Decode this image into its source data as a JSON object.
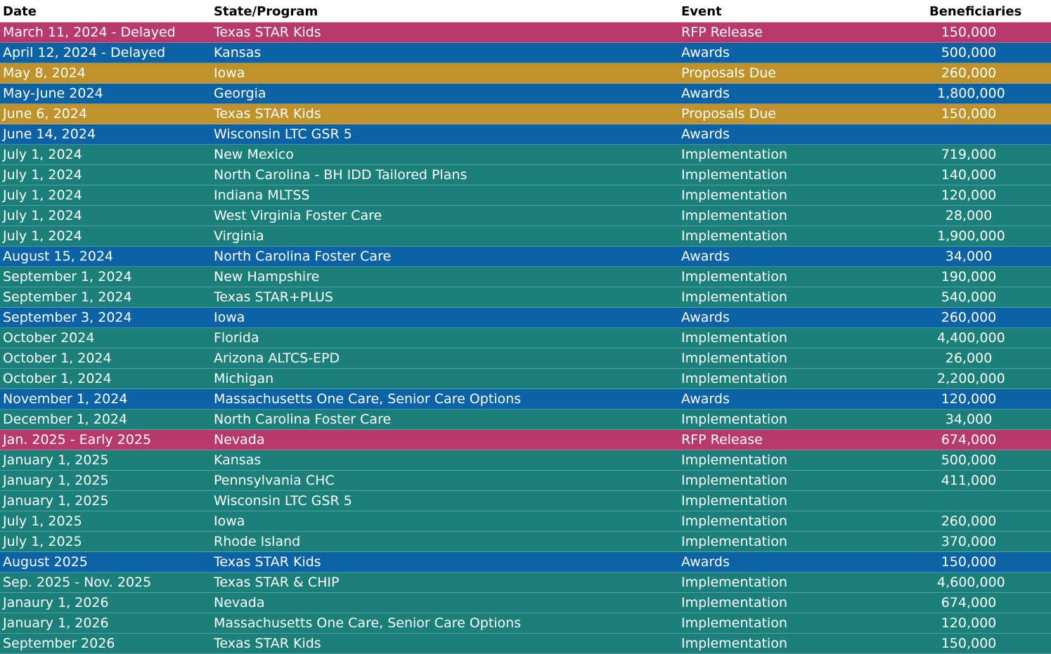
{
  "header": {
    "date": "Date",
    "program": "State/Program",
    "event": "Event",
    "beneficiaries": "Beneficiaries"
  },
  "colors": {
    "rfp_release": "#b8396b",
    "awards": "#0b62a4",
    "proposals_due": "#c0922b",
    "implementation": "#1b7f7a"
  },
  "rows": [
    {
      "date": "March 11, 2024 - Delayed",
      "program": "Texas STAR Kids",
      "event": "RFP Release",
      "beneficiaries": "150,000",
      "type": "rfp_release"
    },
    {
      "date": "April 12, 2024 - Delayed",
      "program": "Kansas",
      "event": "Awards",
      "beneficiaries": "500,000",
      "type": "awards"
    },
    {
      "date": "May 8, 2024",
      "program": "Iowa",
      "event": "Proposals Due",
      "beneficiaries": "260,000",
      "type": "proposals_due"
    },
    {
      "date": "May-June 2024",
      "program": "Georgia",
      "event": "Awards",
      "beneficiaries": "1,800,000",
      "type": "awards"
    },
    {
      "date": "June 6, 2024",
      "program": "Texas STAR Kids",
      "event": "Proposals Due",
      "beneficiaries": "150,000",
      "type": "proposals_due"
    },
    {
      "date": "June 14, 2024",
      "program": "Wisconsin LTC GSR 5",
      "event": "Awards",
      "beneficiaries": "",
      "type": "awards"
    },
    {
      "date": "July 1, 2024",
      "program": "New Mexico",
      "event": "Implementation",
      "beneficiaries": "719,000",
      "type": "implementation"
    },
    {
      "date": "July 1, 2024",
      "program": "North Carolina -  BH IDD Tailored Plans",
      "event": "Implementation",
      "beneficiaries": "140,000",
      "type": "implementation"
    },
    {
      "date": "July 1, 2024",
      "program": "Indiana MLTSS",
      "event": "Implementation",
      "beneficiaries": "120,000",
      "type": "implementation"
    },
    {
      "date": "July 1, 2024",
      "program": "West Virginia Foster Care",
      "event": "Implementation",
      "beneficiaries": "28,000",
      "type": "implementation"
    },
    {
      "date": "July 1, 2024",
      "program": "Virginia",
      "event": "Implementation",
      "beneficiaries": "1,900,000",
      "type": "implementation"
    },
    {
      "date": "August 15, 2024",
      "program": "North Carolina Foster Care",
      "event": "Awards",
      "beneficiaries": "34,000",
      "type": "awards"
    },
    {
      "date": "September 1, 2024",
      "program": "New Hampshire",
      "event": "Implementation",
      "beneficiaries": "190,000",
      "type": "implementation"
    },
    {
      "date": "September 1, 2024",
      "program": "Texas STAR+PLUS",
      "event": "Implementation",
      "beneficiaries": "540,000",
      "type": "implementation"
    },
    {
      "date": "September 3, 2024",
      "program": "Iowa",
      "event": "Awards",
      "beneficiaries": "260,000",
      "type": "awards"
    },
    {
      "date": "October 2024",
      "program": "Florida",
      "event": "Implementation",
      "beneficiaries": "4,400,000",
      "type": "implementation"
    },
    {
      "date": "October 1, 2024",
      "program": "Arizona ALTCS-EPD",
      "event": "Implementation",
      "beneficiaries": "26,000",
      "type": "implementation"
    },
    {
      "date": "October 1, 2024",
      "program": "Michigan",
      "event": "Implementation",
      "beneficiaries": "2,200,000",
      "type": "implementation"
    },
    {
      "date": "November 1, 2024",
      "program": "Massachusetts One Care, Senior Care Options",
      "event": "Awards",
      "beneficiaries": "120,000",
      "type": "awards"
    },
    {
      "date": "December 1, 2024",
      "program": "North Carolina Foster Care",
      "event": "Implementation",
      "beneficiaries": "34,000",
      "type": "implementation"
    },
    {
      "date": "Jan. 2025 - Early 2025",
      "program": "Nevada",
      "event": "RFP Release",
      "beneficiaries": "674,000",
      "type": "rfp_release"
    },
    {
      "date": "January 1, 2025",
      "program": "Kansas",
      "event": "Implementation",
      "beneficiaries": "500,000",
      "type": "implementation"
    },
    {
      "date": "January 1, 2025",
      "program": "Pennsylvania CHC",
      "event": "Implementation",
      "beneficiaries": "411,000",
      "type": "implementation"
    },
    {
      "date": "January 1, 2025",
      "program": "Wisconsin LTC GSR 5",
      "event": "Implementation",
      "beneficiaries": "",
      "type": "implementation"
    },
    {
      "date": "July 1, 2025",
      "program": "Iowa",
      "event": "Implementation",
      "beneficiaries": "260,000",
      "type": "implementation"
    },
    {
      "date": "July 1, 2025",
      "program": "Rhode Island",
      "event": "Implementation",
      "beneficiaries": "370,000",
      "type": "implementation"
    },
    {
      "date": "August 2025",
      "program": "Texas STAR Kids",
      "event": "Awards",
      "beneficiaries": "150,000",
      "type": "awards"
    },
    {
      "date": "Sep. 2025 - Nov. 2025",
      "program": "Texas STAR & CHIP",
      "event": "Implementation",
      "beneficiaries": "4,600,000",
      "type": "implementation"
    },
    {
      "date": "Janaury 1, 2026",
      "program": "Nevada",
      "event": "Implementation",
      "beneficiaries": "674,000",
      "type": "implementation"
    },
    {
      "date": "January 1, 2026",
      "program": "Massachusetts One Care, Senior Care Options",
      "event": "Implementation",
      "beneficiaries": "120,000",
      "type": "implementation"
    },
    {
      "date": "September 2026",
      "program": "Texas STAR Kids",
      "event": "Implementation",
      "beneficiaries": "150,000",
      "type": "implementation"
    }
  ]
}
